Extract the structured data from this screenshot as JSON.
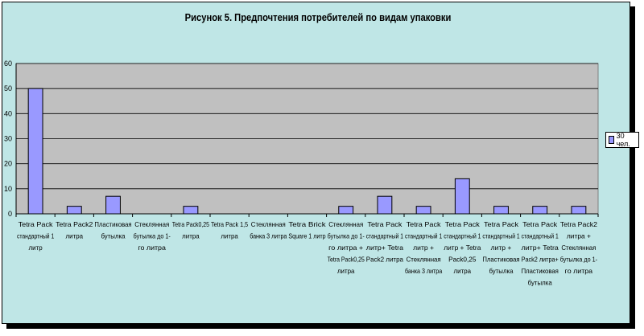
{
  "chart_data": {
    "type": "bar",
    "title": "Рисунок 5. Предпочтения потребителей по видам упаковки",
    "xlabel": "",
    "ylabel": "",
    "ylim": [
      0,
      60
    ],
    "yticks": [
      0,
      10,
      20,
      30,
      40,
      50,
      60
    ],
    "grid": true,
    "legend_position": "right",
    "categories": [
      [
        "Tetra Pack",
        "стандартный 1",
        "литр"
      ],
      [
        "Tetra Pack2",
        "литра"
      ],
      [
        "Пластиковая",
        "бутылка"
      ],
      [
        "Стеклянная",
        "бутылка до 1-",
        "го литра"
      ],
      [
        "Tetra Pack0,25",
        "литра"
      ],
      [
        "Tetra Pack 1,5",
        "литра"
      ],
      [
        "Стеклянная",
        "банка 3 литра"
      ],
      [
        "Tetra Brick",
        "Square 1 литр"
      ],
      [
        "Стеклянная",
        "бутылка до 1-",
        "го литра +",
        "Tetra Pack0,25",
        "литра"
      ],
      [
        "Tetra Pack",
        "стандартный 1",
        "литр+ Tetra",
        "Pack2 литра"
      ],
      [
        "Tetra Pack",
        "стандартный 1",
        "литр +",
        "Стеклянная",
        "банка 3 литра"
      ],
      [
        "Tetra Pack",
        "стандартный 1",
        "литр + Tetra",
        "Pack0,25",
        "литра"
      ],
      [
        "Tetra Pack",
        "стандартный 1",
        "литр +",
        "Пластиковая",
        "бутылка"
      ],
      [
        "Tetra Pack",
        "стандартный 1",
        "литр+ Tetra",
        "Pack2 литра+",
        "Пластиковая",
        "бутылка"
      ],
      [
        "Tetra Pack2",
        "литра +",
        "Стеклянная",
        "бутылка до 1-",
        "го литра"
      ]
    ],
    "series": [
      {
        "name": "30 чел.",
        "values": [
          50,
          3,
          7,
          0,
          3,
          0,
          0,
          0,
          3,
          7,
          3,
          14,
          3,
          3,
          3
        ]
      }
    ],
    "colors": {
      "bar": "#9999ff",
      "plot_bg": "#c0c0c0",
      "chart_bg": "#bfe6e6",
      "grid": "#000000"
    }
  }
}
